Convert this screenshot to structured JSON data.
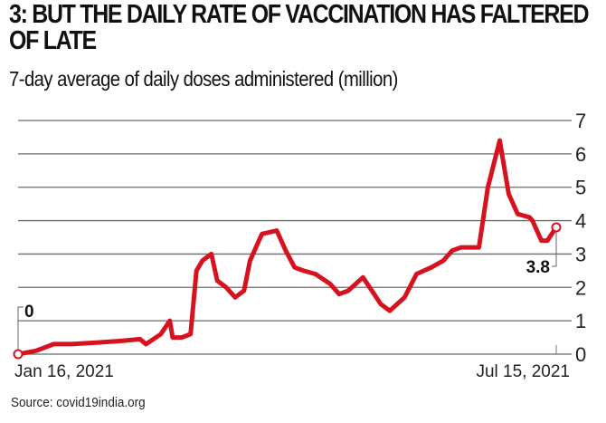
{
  "chart_data": {
    "type": "line",
    "title": "3: BUT THE DAILY RATE OF VACCINATION HAS FALTERED OF LATE",
    "subtitle": "7-day average of daily doses administered (million)",
    "xlabel": "",
    "ylabel": "",
    "ylim": [
      0,
      7
    ],
    "yticks": [
      "0",
      "1",
      "2",
      "3",
      "4",
      "5",
      "6",
      "7"
    ],
    "xlim_days": [
      0,
      181
    ],
    "xtick_labels": [
      {
        "day": 0,
        "label": "Jan 16, 2021"
      },
      {
        "day": 181,
        "label": "Jul 15, 2021"
      }
    ],
    "grid": true,
    "line_color": "#d7121f",
    "series": [
      {
        "name": "7-day average daily doses (million)",
        "x_days": [
          0,
          6,
          12,
          18,
          27,
          35,
          41,
          43,
          48,
          51,
          52,
          55,
          58,
          60,
          62,
          65,
          67,
          70,
          73,
          76,
          78,
          82,
          87,
          90,
          93,
          96,
          100,
          105,
          108,
          111,
          116,
          119,
          122,
          125,
          130,
          134,
          139,
          143,
          146,
          149,
          155,
          158,
          162,
          165,
          168,
          172,
          173,
          176,
          178,
          181
        ],
        "values": [
          0,
          0.1,
          0.3,
          0.3,
          0.35,
          0.4,
          0.45,
          0.3,
          0.6,
          1.0,
          0.5,
          0.5,
          0.6,
          2.5,
          2.8,
          3.0,
          2.2,
          2.0,
          1.7,
          1.9,
          2.8,
          3.6,
          3.7,
          3.1,
          2.6,
          2.5,
          2.4,
          2.1,
          1.8,
          1.9,
          2.3,
          1.9,
          1.5,
          1.3,
          1.7,
          2.4,
          2.6,
          2.8,
          3.1,
          3.2,
          3.2,
          5.0,
          6.4,
          4.8,
          4.2,
          4.1,
          4.0,
          3.4,
          3.4,
          3.8
        ]
      }
    ],
    "annotations": [
      {
        "day": 0,
        "value": 0,
        "label": "0"
      },
      {
        "day": 181,
        "value": 3.8,
        "label": "3.8"
      }
    ],
    "source": "Source: covid19india.org"
  }
}
